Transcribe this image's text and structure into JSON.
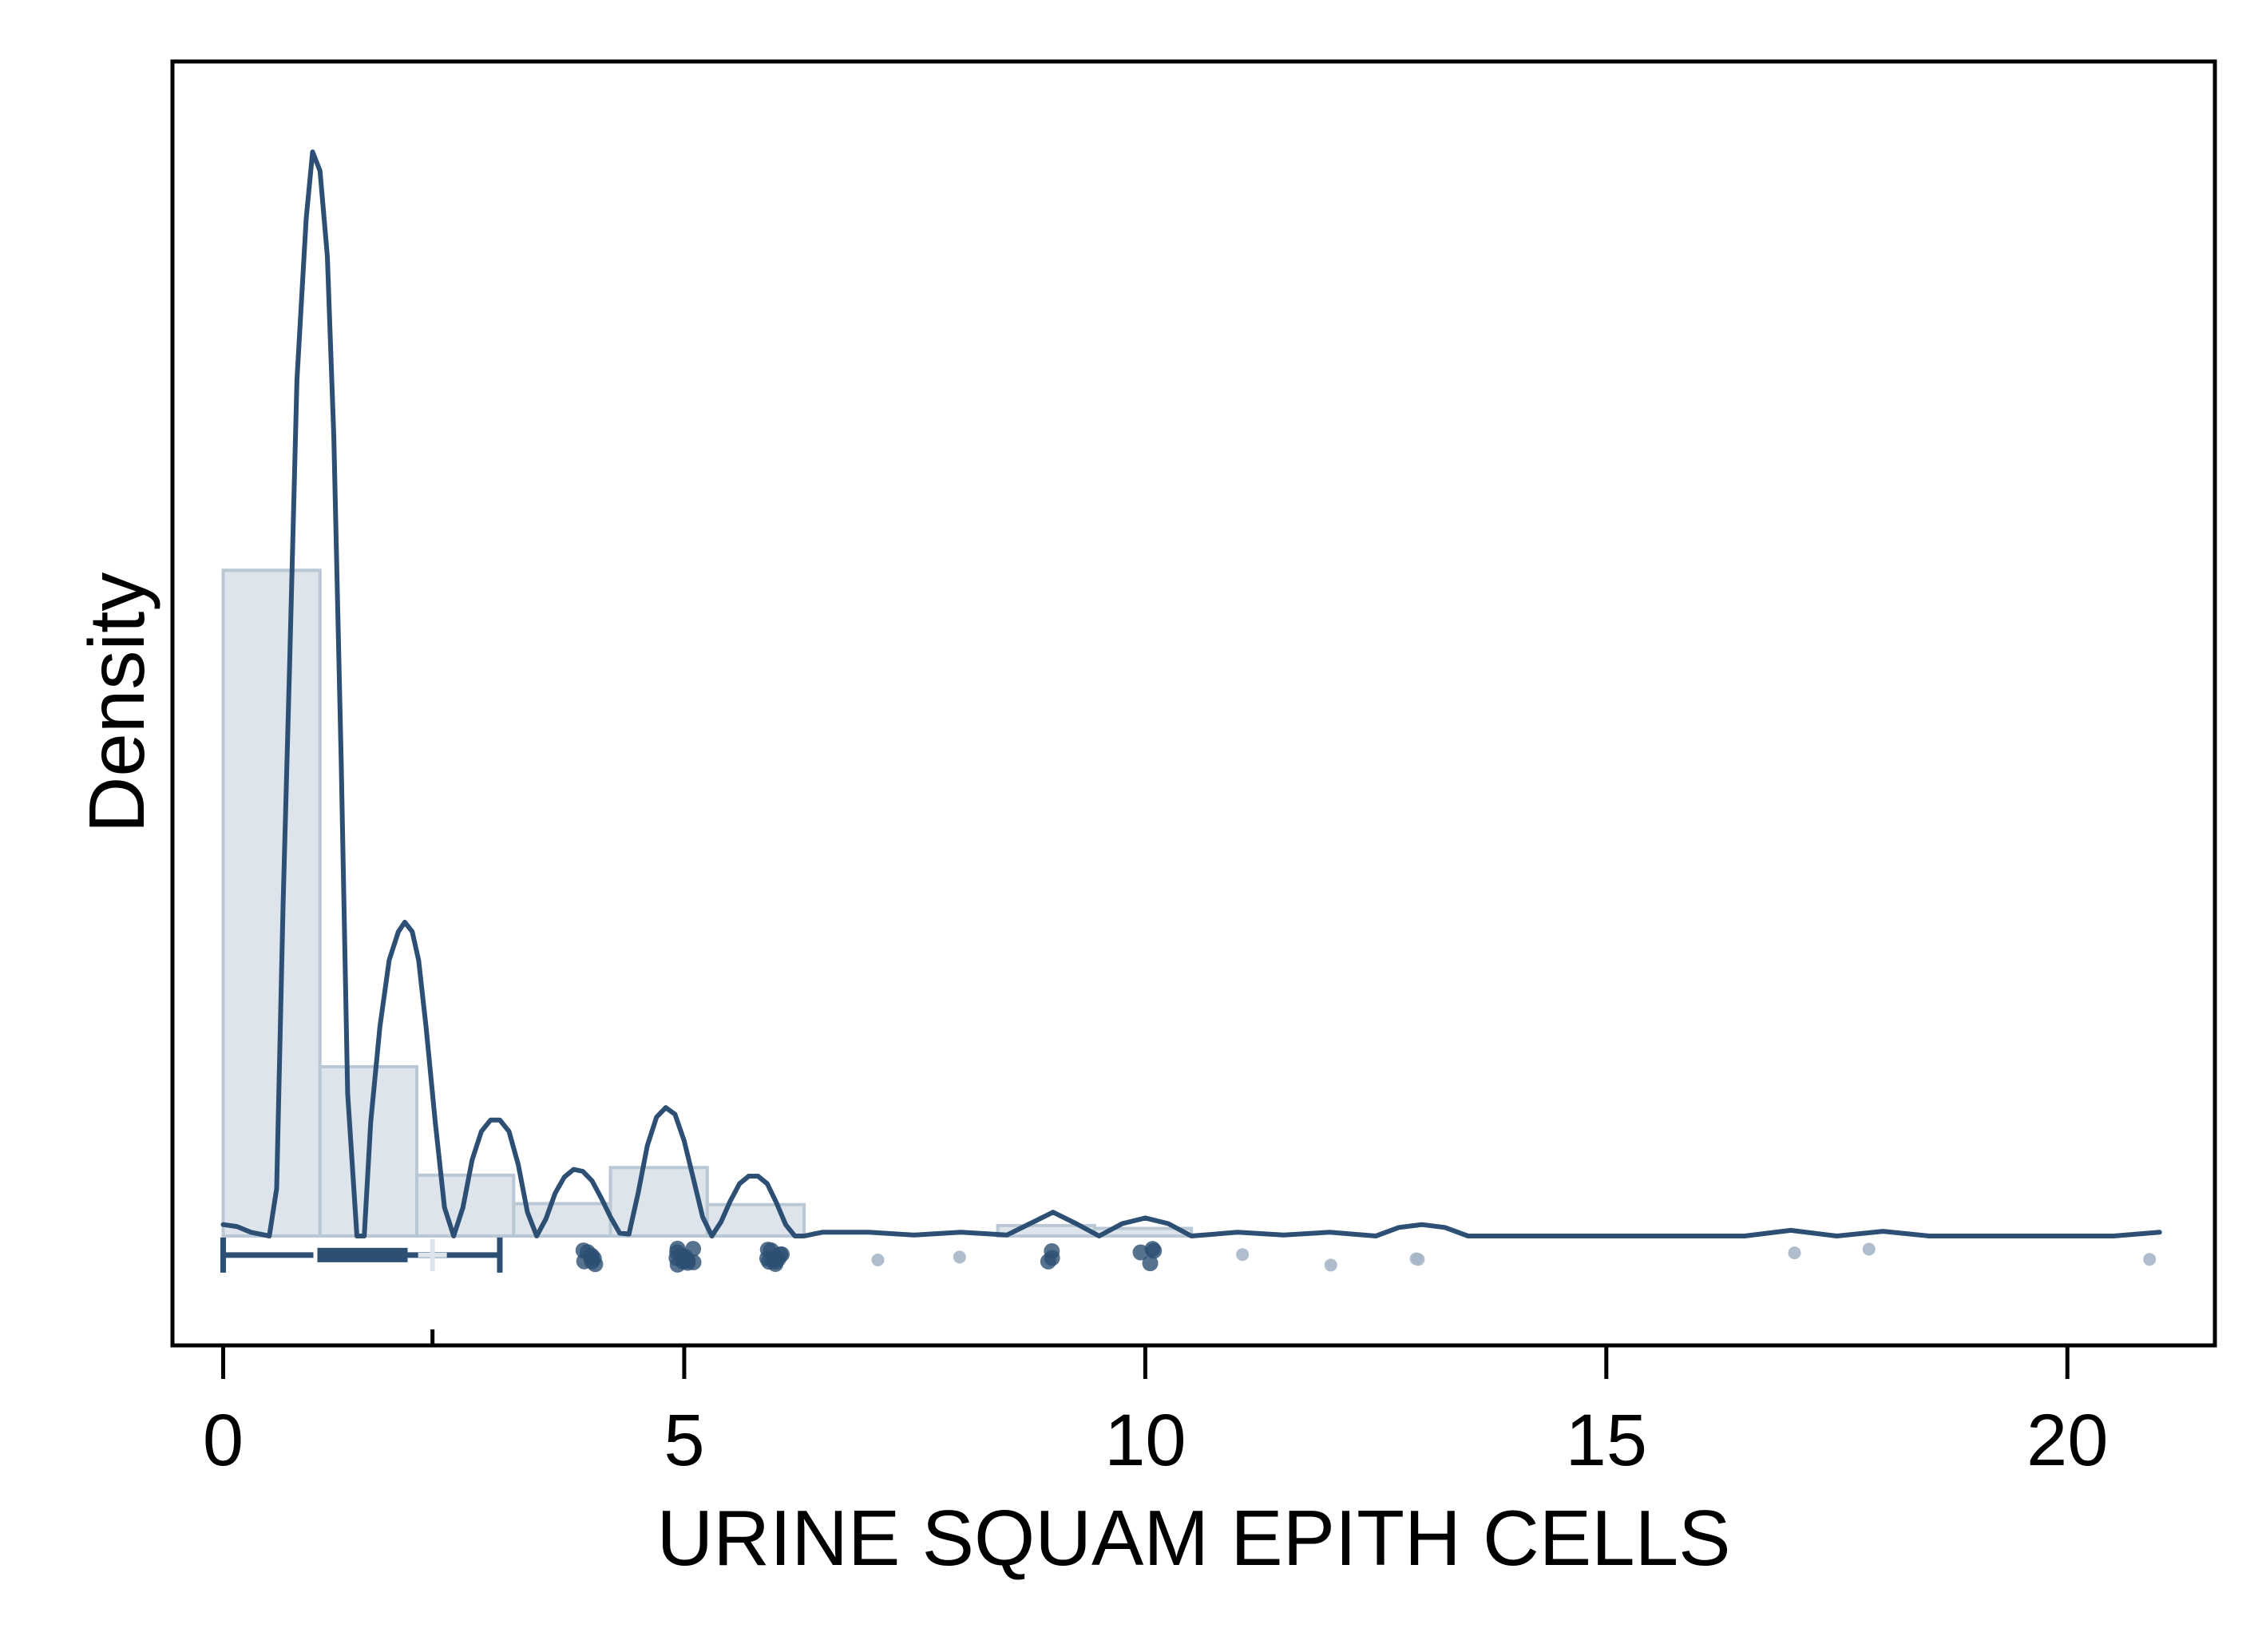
{
  "chart_data": {
    "type": "histogram",
    "xlabel": "URINE SQUAM EPITH CELLS",
    "ylabel": "Density",
    "xlim": [
      -0.55,
      21.6
    ],
    "ylim": [
      -0.115,
      1.235
    ],
    "x_ticks": [
      0,
      5,
      10,
      15,
      20
    ],
    "x_tick_labels": [
      "0",
      "5",
      "10",
      "15",
      "20"
    ],
    "y_ticks_shown": false,
    "grid": false,
    "legend": "none",
    "mean_marker": 2.27,
    "histogram": {
      "bins": [
        {
          "x0": 0.0,
          "x1": 1.05,
          "density": 0.7
        },
        {
          "x0": 1.05,
          "x1": 2.1,
          "density": 0.178
        },
        {
          "x0": 2.1,
          "x1": 3.15,
          "density": 0.064
        },
        {
          "x0": 3.15,
          "x1": 4.2,
          "density": 0.034
        },
        {
          "x0": 4.2,
          "x1": 5.25,
          "density": 0.072
        },
        {
          "x0": 5.25,
          "x1": 6.3,
          "density": 0.033
        },
        {
          "x0": 6.3,
          "x1": 7.35,
          "density": 0.0
        },
        {
          "x0": 7.35,
          "x1": 8.4,
          "density": 0.0
        },
        {
          "x0": 8.4,
          "x1": 9.45,
          "density": 0.011
        },
        {
          "x0": 9.45,
          "x1": 10.5,
          "density": 0.008
        }
      ]
    },
    "kde": {
      "x": [
        0,
        0.15,
        0.3,
        0.5,
        0.58,
        0.65,
        0.72,
        0.8,
        0.9,
        0.97,
        1.05,
        1.13,
        1.2,
        1.28,
        1.35,
        1.45,
        1.53,
        1.6,
        1.7,
        1.8,
        1.9,
        1.97,
        2.05,
        2.12,
        2.2,
        2.3,
        2.4,
        2.5,
        2.6,
        2.7,
        2.8,
        2.9,
        3.0,
        3.1,
        3.2,
        3.3,
        3.4,
        3.5,
        3.6,
        3.7,
        3.8,
        3.9,
        4.0,
        4.1,
        4.2,
        4.3,
        4.4,
        4.5,
        4.6,
        4.7,
        4.8,
        4.9,
        5.0,
        5.1,
        5.2,
        5.3,
        5.4,
        5.5,
        5.6,
        5.7,
        5.8,
        5.9,
        6.0,
        6.1,
        6.2,
        6.3,
        6.4,
        6.5,
        7.0,
        7.5,
        8.0,
        8.5,
        8.75,
        9.0,
        9.25,
        9.5,
        9.75,
        10.0,
        10.25,
        10.5,
        11.0,
        11.5,
        12.0,
        12.5,
        12.75,
        13.0,
        13.25,
        13.5,
        16.5,
        17.0,
        17.5,
        18.0,
        18.5,
        20.5,
        21.0
      ],
      "y": [
        0.012,
        0.01,
        0.004,
        0.0,
        0.05,
        0.35,
        0.6,
        0.9,
        1.07,
        1.14,
        1.12,
        1.03,
        0.84,
        0.5,
        0.15,
        0.0,
        0.0,
        0.12,
        0.22,
        0.29,
        0.32,
        0.33,
        0.32,
        0.29,
        0.22,
        0.12,
        0.03,
        0.0,
        0.03,
        0.08,
        0.11,
        0.122,
        0.122,
        0.11,
        0.075,
        0.025,
        0.0,
        0.018,
        0.045,
        0.062,
        0.07,
        0.068,
        0.058,
        0.04,
        0.02,
        0.003,
        0.002,
        0.045,
        0.095,
        0.125,
        0.135,
        0.128,
        0.1,
        0.06,
        0.02,
        0.0,
        0.015,
        0.037,
        0.055,
        0.063,
        0.063,
        0.055,
        0.035,
        0.012,
        0.0,
        0.0,
        0.002,
        0.004,
        0.004,
        0.001,
        0.004,
        0.001,
        0.013,
        0.025,
        0.013,
        0.0,
        0.013,
        0.019,
        0.013,
        0.0,
        0.004,
        0.001,
        0.004,
        0.0,
        0.009,
        0.012,
        0.009,
        0.0,
        0.0,
        0.006,
        0.0,
        0.005,
        0.0,
        0.0,
        0.004
      ]
    },
    "boxplot": {
      "min": 0,
      "q1": 1,
      "median": 1,
      "q3": 2,
      "max": 3,
      "whisker_low": 0,
      "whisker_high": 3
    },
    "rug_points": [
      {
        "x": 4.0,
        "n": 8
      },
      {
        "x": 5.0,
        "n": 12
      },
      {
        "x": 6.0,
        "n": 10
      },
      {
        "x": 7.0,
        "n": 1
      },
      {
        "x": 8.0,
        "n": 1
      },
      {
        "x": 9.0,
        "n": 3
      },
      {
        "x": 10.0,
        "n": 4
      },
      {
        "x": 11.0,
        "n": 1
      },
      {
        "x": 12.0,
        "n": 1
      },
      {
        "x": 13.0,
        "n": 2
      },
      {
        "x": 17.0,
        "n": 1
      },
      {
        "x": 17.9,
        "n": 1
      },
      {
        "x": 21.0,
        "n": 1
      }
    ]
  },
  "colors": {
    "kde_line": "#2c4f73",
    "hist_fill": "#dde4ec",
    "hist_stroke": "#bac7d4",
    "box": "#2c4f73",
    "rug_dark": "#2c4f73",
    "rug_light": "#a6b6c8",
    "mean_marker": "#dde4ec",
    "axis": "#000000"
  }
}
